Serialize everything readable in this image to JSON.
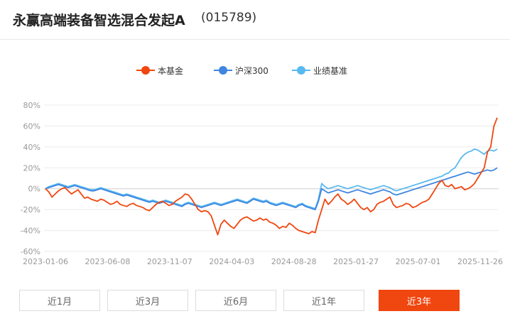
{
  "header": {
    "title": "永赢高端装备智选混合发起A",
    "code": "(015789)"
  },
  "legend": [
    {
      "name": "本基金",
      "color": "#f0460f"
    },
    {
      "name": "沪深300",
      "color": "#3f86e0"
    },
    {
      "name": "业绩基准",
      "color": "#58b9f0"
    }
  ],
  "buttons": [
    {
      "label": "近1月",
      "active": false
    },
    {
      "label": "近3月",
      "active": false
    },
    {
      "label": "近6月",
      "active": false
    },
    {
      "label": "近1年",
      "active": false
    },
    {
      "label": "近3年",
      "active": true
    }
  ],
  "chart_data": {
    "type": "line",
    "x_labels": [
      "2023-01-06",
      "2023-06-08",
      "2023-11-07",
      "2024-04-03",
      "2024-08-28",
      "2025-01-27",
      "2025-07-01",
      "2025-11-26"
    ],
    "y_ticks": [
      "80%",
      "60%",
      "40%",
      "20%",
      "0%",
      "-20%",
      "-40%",
      "-60%"
    ],
    "ylim": [
      -60,
      80
    ],
    "grid": true,
    "legend_position": "top",
    "series": [
      {
        "name": "本基金",
        "color": "#f0460f",
        "values": [
          0,
          -3,
          -8,
          -5,
          -2,
          0,
          1,
          -2,
          -5,
          -3,
          -1,
          -5,
          -9,
          -8,
          -10,
          -11,
          -12,
          -10,
          -11,
          -13,
          -15,
          -14,
          -12,
          -15,
          -16,
          -17,
          -15,
          -14,
          -16,
          -17,
          -18,
          -20,
          -21,
          -18,
          -15,
          -13,
          -12,
          -14,
          -16,
          -15,
          -12,
          -10,
          -8,
          -5,
          -6,
          -10,
          -15,
          -20,
          -22,
          -21,
          -22,
          -26,
          -35,
          -44,
          -34,
          -30,
          -33,
          -36,
          -38,
          -34,
          -30,
          -28,
          -27,
          -29,
          -31,
          -30,
          -28,
          -30,
          -29,
          -32,
          -33,
          -35,
          -38,
          -36,
          -37,
          -33,
          -35,
          -38,
          -40,
          -41,
          -42,
          -43,
          -41,
          -42,
          -30,
          -20,
          -10,
          -15,
          -12,
          -8,
          -5,
          -10,
          -12,
          -15,
          -13,
          -10,
          -14,
          -18,
          -20,
          -18,
          -22,
          -20,
          -15,
          -13,
          -12,
          -10,
          -8,
          -15,
          -18,
          -17,
          -16,
          -14,
          -15,
          -18,
          -17,
          -15,
          -13,
          -12,
          -10,
          -5,
          0,
          5,
          8,
          3,
          2,
          4,
          0,
          1,
          2,
          -1,
          0,
          2,
          5,
          10,
          15,
          20,
          35,
          40,
          60,
          68
        ]
      },
      {
        "name": "沪深300",
        "color": "#3f86e0",
        "values": [
          0,
          1,
          2,
          3,
          4,
          3,
          2,
          1,
          2,
          3,
          2,
          1,
          0,
          -1,
          -2,
          -2,
          -1,
          0,
          -1,
          -2,
          -3,
          -4,
          -5,
          -6,
          -7,
          -6,
          -7,
          -8,
          -9,
          -10,
          -11,
          -12,
          -13,
          -12,
          -13,
          -14,
          -13,
          -12,
          -13,
          -14,
          -15,
          -16,
          -17,
          -15,
          -14,
          -15,
          -16,
          -17,
          -18,
          -17,
          -16,
          -15,
          -14,
          -15,
          -16,
          -15,
          -14,
          -13,
          -12,
          -11,
          -12,
          -13,
          -14,
          -12,
          -10,
          -11,
          -12,
          -13,
          -12,
          -14,
          -15,
          -16,
          -15,
          -14,
          -15,
          -16,
          -17,
          -18,
          -16,
          -15,
          -17,
          -18,
          -19,
          -20,
          -12,
          0,
          -2,
          -4,
          -3,
          -2,
          -1,
          -2,
          -3,
          -4,
          -3,
          -2,
          -1,
          -2,
          -3,
          -4,
          -5,
          -4,
          -3,
          -2,
          -1,
          -2,
          -3,
          -5,
          -6,
          -5,
          -4,
          -3,
          -2,
          -1,
          0,
          1,
          2,
          3,
          4,
          5,
          6,
          7,
          8,
          9,
          10,
          11,
          12,
          13,
          14,
          15,
          16,
          15,
          14,
          15,
          16,
          17,
          18,
          17,
          18,
          20
        ]
      },
      {
        "name": "业绩基准",
        "color": "#58b9f0",
        "values": [
          0,
          2,
          3,
          4,
          5,
          4,
          3,
          2,
          3,
          4,
          3,
          2,
          1,
          0,
          -1,
          -1,
          0,
          1,
          0,
          -1,
          -2,
          -3,
          -4,
          -5,
          -6,
          -5,
          -6,
          -7,
          -8,
          -9,
          -10,
          -11,
          -12,
          -11,
          -12,
          -13,
          -12,
          -11,
          -12,
          -13,
          -14,
          -15,
          -16,
          -14,
          -13,
          -14,
          -15,
          -16,
          -17,
          -16,
          -15,
          -14,
          -13,
          -14,
          -15,
          -14,
          -13,
          -12,
          -11,
          -10,
          -11,
          -12,
          -13,
          -11,
          -9,
          -10,
          -11,
          -12,
          -11,
          -13,
          -14,
          -15,
          -14,
          -13,
          -14,
          -15,
          -16,
          -17,
          -15,
          -14,
          -16,
          -17,
          -18,
          -19,
          -10,
          5,
          2,
          0,
          1,
          2,
          3,
          2,
          1,
          0,
          1,
          2,
          3,
          2,
          1,
          0,
          -1,
          0,
          1,
          2,
          3,
          2,
          1,
          -1,
          -2,
          -1,
          0,
          1,
          2,
          3,
          4,
          5,
          6,
          7,
          8,
          9,
          10,
          11,
          12,
          14,
          15,
          18,
          20,
          25,
          30,
          33,
          35,
          36,
          38,
          37,
          35,
          33,
          36,
          37,
          36,
          38
        ]
      }
    ]
  }
}
